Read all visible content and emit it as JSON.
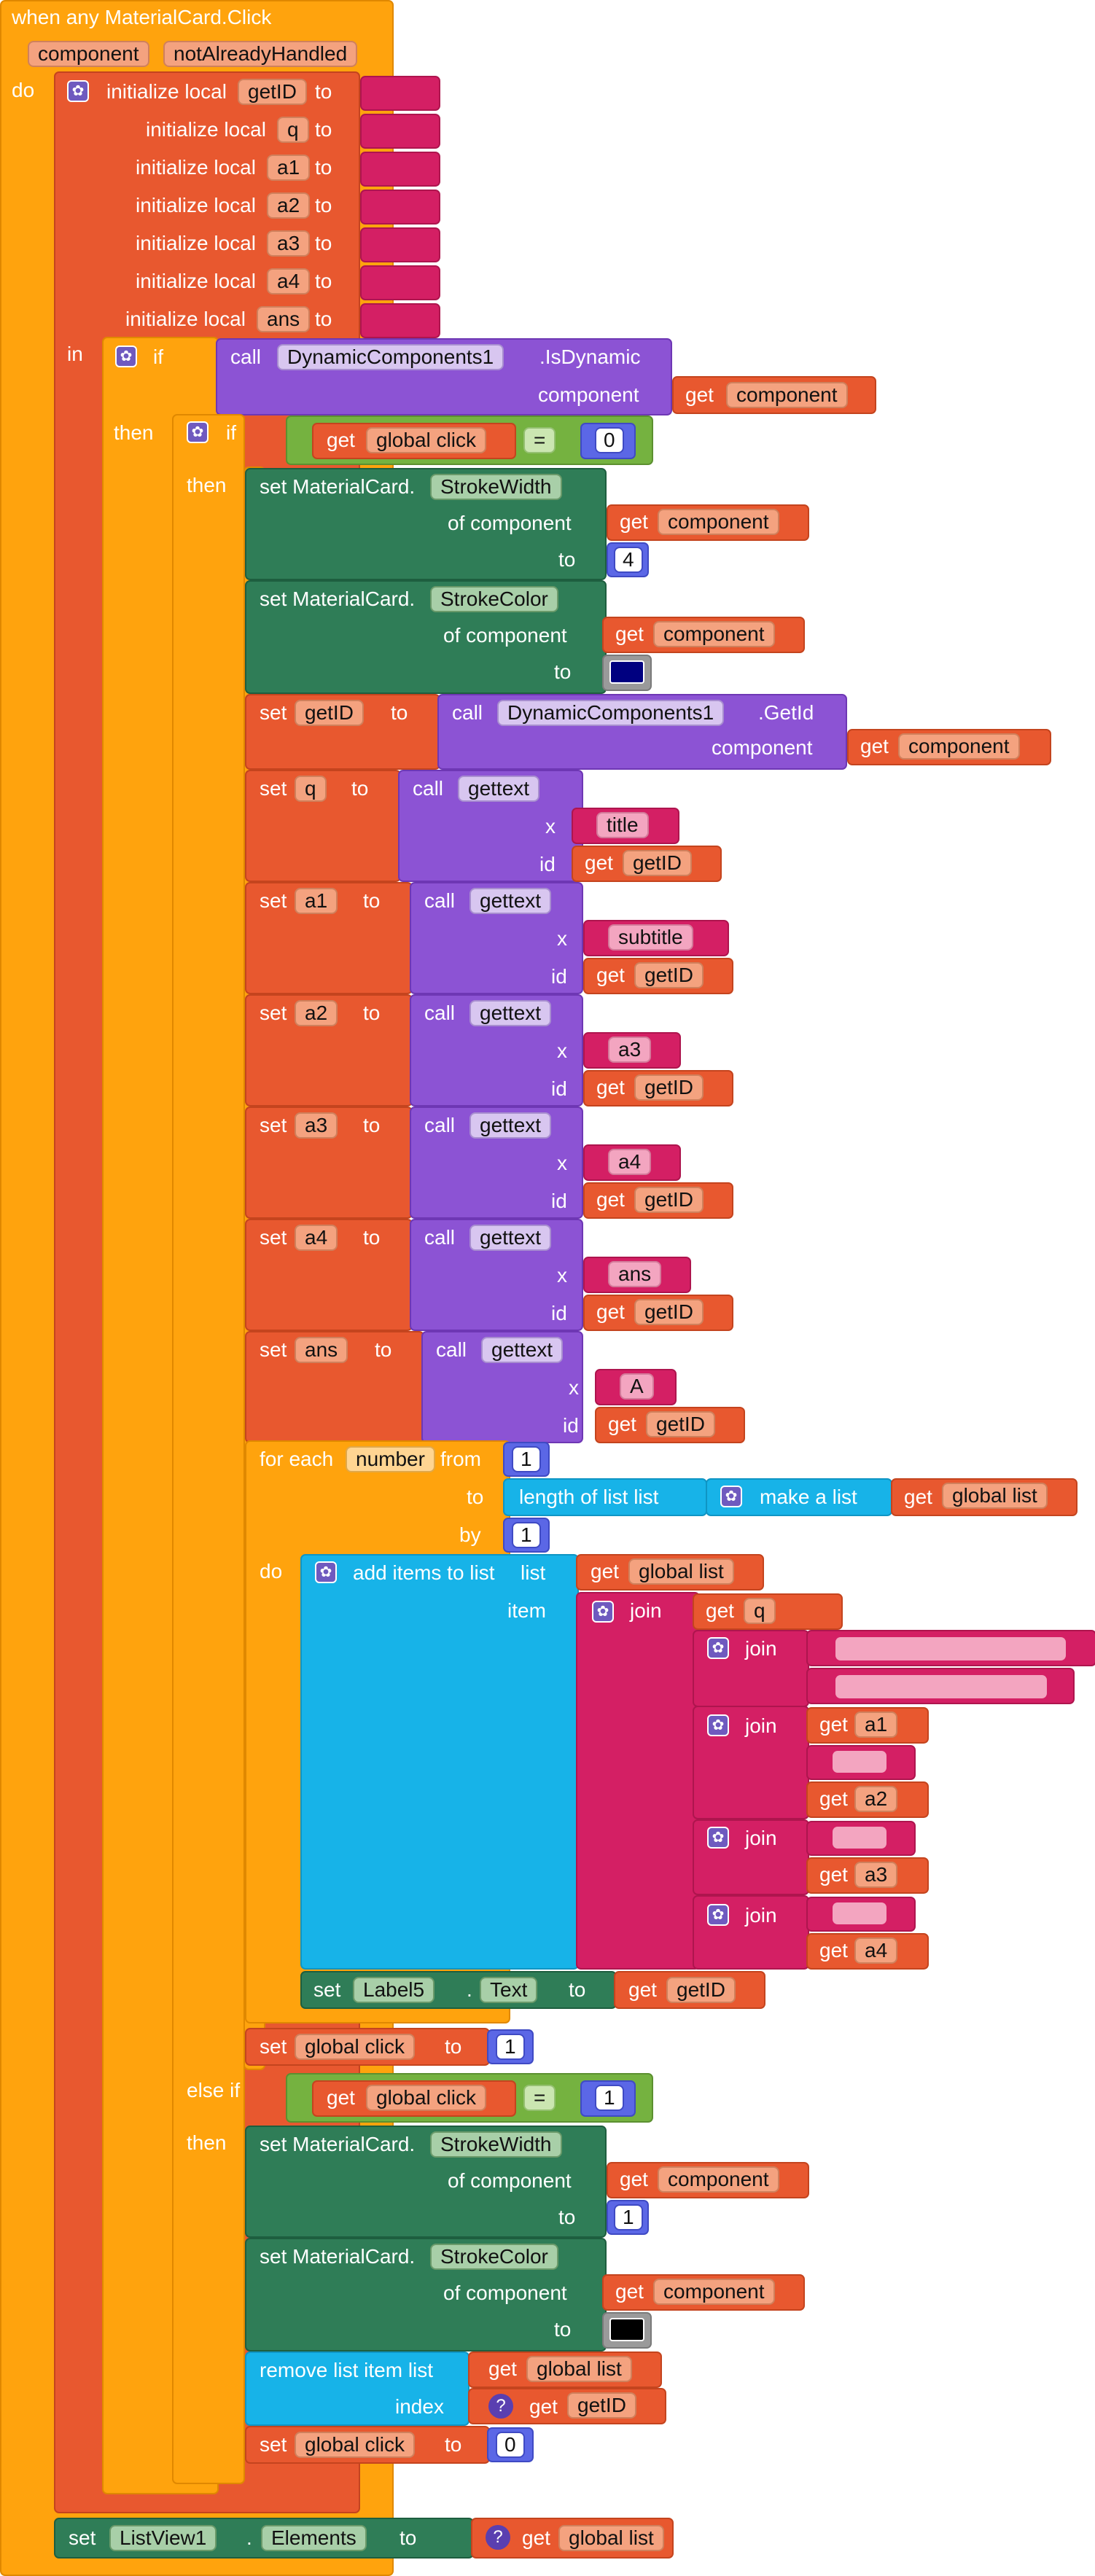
{
  "event": {
    "title": "when any MaterialCard.Click",
    "param1": "component",
    "param2": "notAlreadyHandled",
    "do_label": "do"
  },
  "locals": {
    "init_label": "initialize local",
    "to_label": "to",
    "names": [
      "getID",
      "q",
      "a1",
      "a2",
      "a3",
      "a4",
      "ans"
    ],
    "in_label": "in"
  },
  "if1": {
    "if_label": "if",
    "call_label": "call",
    "component_name": "DynamicComponents1",
    "method": ".IsDynamic",
    "arg_label": "component",
    "get_label": "get",
    "get_value": "component",
    "then_label": "then"
  },
  "if2": {
    "if_label": "if",
    "get_label": "get",
    "var": "global click",
    "op": "=",
    "value": "0",
    "then_label": "then"
  },
  "set1": {
    "prefix": "set MaterialCard.",
    "prop": "StrokeWidth",
    "of_label": "of component",
    "get_label": "get",
    "get_value": "component",
    "to_label": "to",
    "value": "4"
  },
  "set2": {
    "prefix": "set MaterialCard.",
    "prop": "StrokeColor",
    "of_label": "of component",
    "get_label": "get",
    "get_value": "component",
    "to_label": "to",
    "color": "#000080"
  },
  "setid": {
    "set_label": "set",
    "var": "getID",
    "to_label": "to",
    "call_label": "call",
    "component_name": "DynamicComponents1",
    "method": ".GetId",
    "arg_label": "component",
    "get_label": "get",
    "get_value": "component"
  },
  "gettexts": [
    {
      "var": "q",
      "x": "title"
    },
    {
      "var": "a1",
      "x": "subtitle"
    },
    {
      "var": "a2",
      "x": "a3"
    },
    {
      "var": "a3",
      "x": "a4"
    },
    {
      "var": "a4",
      "x": "ans"
    },
    {
      "var": "ans",
      "x": "A"
    }
  ],
  "gettext_common": {
    "set_label": "set",
    "to_label": "to",
    "call_label": "call",
    "proc": "gettext",
    "x_label": "x",
    "id_label": "id",
    "get_label": "get",
    "id_value": "getID"
  },
  "foreach": {
    "label": "for each",
    "var": "number",
    "from_label": "from",
    "from_value": "1",
    "to_label": "to",
    "length_label": "length of list  list",
    "make_list_label": "make a list",
    "get_label": "get",
    "list_var": "global list",
    "by_label": "by",
    "by_value": "1",
    "do_label": "do"
  },
  "additems": {
    "label": "add items to list",
    "list_label": "list",
    "get_label": "get",
    "list_var": "global list",
    "item_label": "item",
    "join_label": "join",
    "q_var": "q",
    "a1": "a1",
    "a2": "a2",
    "a3": "a3",
    "a4": "a4"
  },
  "setlabel": {
    "set_label": "set",
    "component": "Label5",
    "dot": ".",
    "prop": "Text",
    "to_label": "to",
    "get_label": "get",
    "value": "getID"
  },
  "setclick1": {
    "set_label": "set",
    "var": "global click",
    "to_label": "to",
    "value": "1"
  },
  "elseif": {
    "label": "else if",
    "get_label": "get",
    "var": "global click",
    "op": "=",
    "value": "1",
    "then_label": "then"
  },
  "set3": {
    "prefix": "set MaterialCard.",
    "prop": "StrokeWidth",
    "of_label": "of component",
    "get_label": "get",
    "get_value": "component",
    "to_label": "to",
    "value": "1"
  },
  "set4": {
    "prefix": "set MaterialCard.",
    "prop": "StrokeColor",
    "of_label": "of component",
    "get_label": "get",
    "get_value": "component",
    "to_label": "to",
    "color": "#000000"
  },
  "remove": {
    "label": "remove list item  list",
    "get_label": "get",
    "list_var": "global list",
    "index_label": "index",
    "index_value": "getID"
  },
  "setclick0": {
    "set_label": "set",
    "var": "global click",
    "to_label": "to",
    "value": "0"
  },
  "setlistview": {
    "set_label": "set",
    "component": "ListView1",
    "dot": ".",
    "prop": "Elements",
    "to_label": "to",
    "get_label": "get",
    "value": "global list"
  },
  "icons": {
    "gear": "gear-icon",
    "help": "help-icon",
    "dropdown": "dropdown-arrow-icon"
  }
}
